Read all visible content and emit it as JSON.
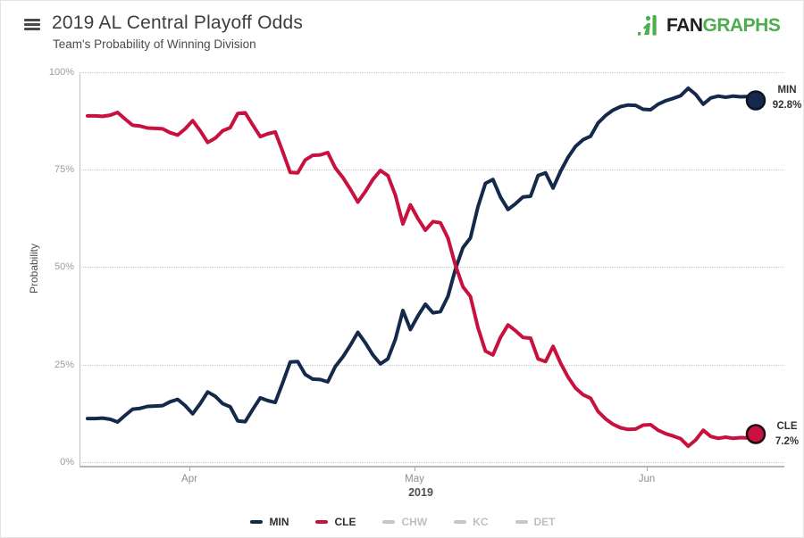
{
  "header": {
    "title": "2019 AL Central Playoff Odds",
    "subtitle": "Team's Probability of Winning Division"
  },
  "logo": {
    "fan": "FAN",
    "graphs": "GRAPHS",
    "green": "#4cae4c",
    "dark": "#1f1f1f"
  },
  "chart_data": {
    "type": "line",
    "title": "2019 AL Central Playoff Odds",
    "subtitle": "Team's Probability of Winning Division",
    "ylabel": "Probability",
    "xlabel": "2019",
    "ylim": [
      0,
      100
    ],
    "y_tick_labels": [
      "0%",
      "25%",
      "50%",
      "75%",
      "100%"
    ],
    "x_tick_labels": [
      "Apr",
      "May",
      "Jun"
    ],
    "x_unit": "day",
    "x_start": "2019-03-18",
    "x_end": "2019-06-15",
    "grid": "horizontal dotted",
    "legend_position": "bottom",
    "series": [
      {
        "name": "MIN",
        "color": "#14294b",
        "dot_border": "#0b1422",
        "end_label": "MIN",
        "end_value_label": "92.8%",
        "end_value": 92.8,
        "values": [
          11.2,
          11.2,
          11.3,
          11.0,
          10.3,
          12.0,
          13.6,
          13.8,
          14.3,
          14.4,
          14.5,
          15.5,
          16.1,
          14.5,
          12.4,
          15.0,
          18.0,
          16.9,
          15.0,
          14.2,
          10.6,
          10.4,
          13.5,
          16.5,
          15.8,
          15.3,
          20.4,
          25.7,
          25.8,
          22.5,
          21.3,
          21.2,
          20.6,
          24.5,
          27.0,
          30.0,
          33.3,
          30.6,
          27.5,
          25.2,
          26.5,
          31.5,
          38.9,
          34.0,
          37.5,
          40.5,
          38.3,
          38.6,
          42.5,
          49.5,
          55.0,
          57.5,
          65.5,
          71.5,
          72.5,
          68.0,
          64.8,
          66.3,
          68.0,
          68.2,
          73.5,
          74.2,
          70.3,
          74.6,
          78.2,
          81.0,
          82.7,
          83.6,
          87.0,
          88.9,
          90.3,
          91.2,
          91.6,
          91.5,
          90.5,
          90.4,
          91.8,
          92.7,
          93.3,
          94.0,
          95.9,
          94.3,
          91.8,
          93.4,
          93.9,
          93.6,
          93.9,
          93.7,
          93.8,
          92.8
        ]
      },
      {
        "name": "CLE",
        "color": "#c8113e",
        "dot_border": "#1d0a12",
        "end_label": "CLE",
        "end_value_label": "7.2%",
        "end_value": 7.2,
        "values": [
          88.8,
          88.8,
          88.7,
          89.0,
          89.7,
          88.0,
          86.4,
          86.2,
          85.7,
          85.6,
          85.5,
          84.5,
          83.9,
          85.5,
          87.6,
          85.0,
          82.0,
          83.1,
          85.0,
          85.8,
          89.4,
          89.6,
          86.5,
          83.5,
          84.2,
          84.7,
          79.6,
          74.3,
          74.2,
          77.5,
          78.7,
          78.8,
          79.4,
          75.5,
          73.0,
          70.0,
          66.7,
          69.4,
          72.5,
          74.8,
          73.5,
          68.5,
          61.1,
          66.0,
          62.5,
          59.5,
          61.7,
          61.4,
          57.5,
          50.5,
          45.0,
          42.5,
          34.5,
          28.5,
          27.5,
          32.0,
          35.2,
          33.7,
          32.0,
          31.8,
          26.5,
          25.8,
          29.7,
          25.4,
          21.8,
          19.0,
          17.3,
          16.4,
          13.0,
          11.1,
          9.7,
          8.8,
          8.4,
          8.5,
          9.5,
          9.6,
          8.2,
          7.3,
          6.7,
          6.0,
          4.1,
          5.7,
          8.2,
          6.6,
          6.1,
          6.4,
          6.1,
          6.3,
          6.2,
          7.2
        ]
      }
    ],
    "legend": [
      {
        "label": "MIN",
        "color": "#14294b",
        "active": true
      },
      {
        "label": "CLE",
        "color": "#c8113e",
        "active": true
      },
      {
        "label": "CHW",
        "color": "#c3c7cc",
        "active": false
      },
      {
        "label": "KC",
        "color": "#c3c7cc",
        "active": false
      },
      {
        "label": "DET",
        "color": "#c3c7cc",
        "active": false
      }
    ]
  }
}
